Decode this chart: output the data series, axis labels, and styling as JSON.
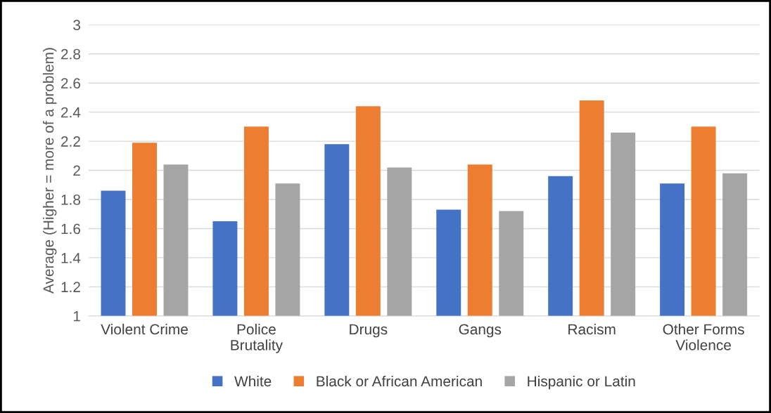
{
  "chart_data": {
    "type": "bar",
    "ylabel": "Average (Higher = more of a problem)",
    "categories": [
      "Violent Crime",
      "Police\nBrutality",
      "Drugs",
      "Gangs",
      "Racism",
      "Other Forms\nViolence"
    ],
    "series": [
      {
        "name": "White",
        "color": "#4472c4",
        "values": [
          1.86,
          1.65,
          2.18,
          1.73,
          1.96,
          1.91
        ]
      },
      {
        "name": "Black or African American",
        "color": "#ed7d31",
        "values": [
          2.19,
          2.3,
          2.44,
          2.04,
          2.48,
          2.3
        ]
      },
      {
        "name": "Hispanic or Latin",
        "color": "#a5a5a5",
        "values": [
          2.04,
          1.91,
          2.02,
          1.72,
          2.26,
          1.98
        ]
      }
    ],
    "ylim": [
      1,
      3
    ],
    "yticks": [
      1,
      1.2,
      1.4,
      1.6,
      1.8,
      2,
      2.2,
      2.4,
      2.6,
      2.8,
      3
    ],
    "grid": "y",
    "legend": "bottom"
  }
}
